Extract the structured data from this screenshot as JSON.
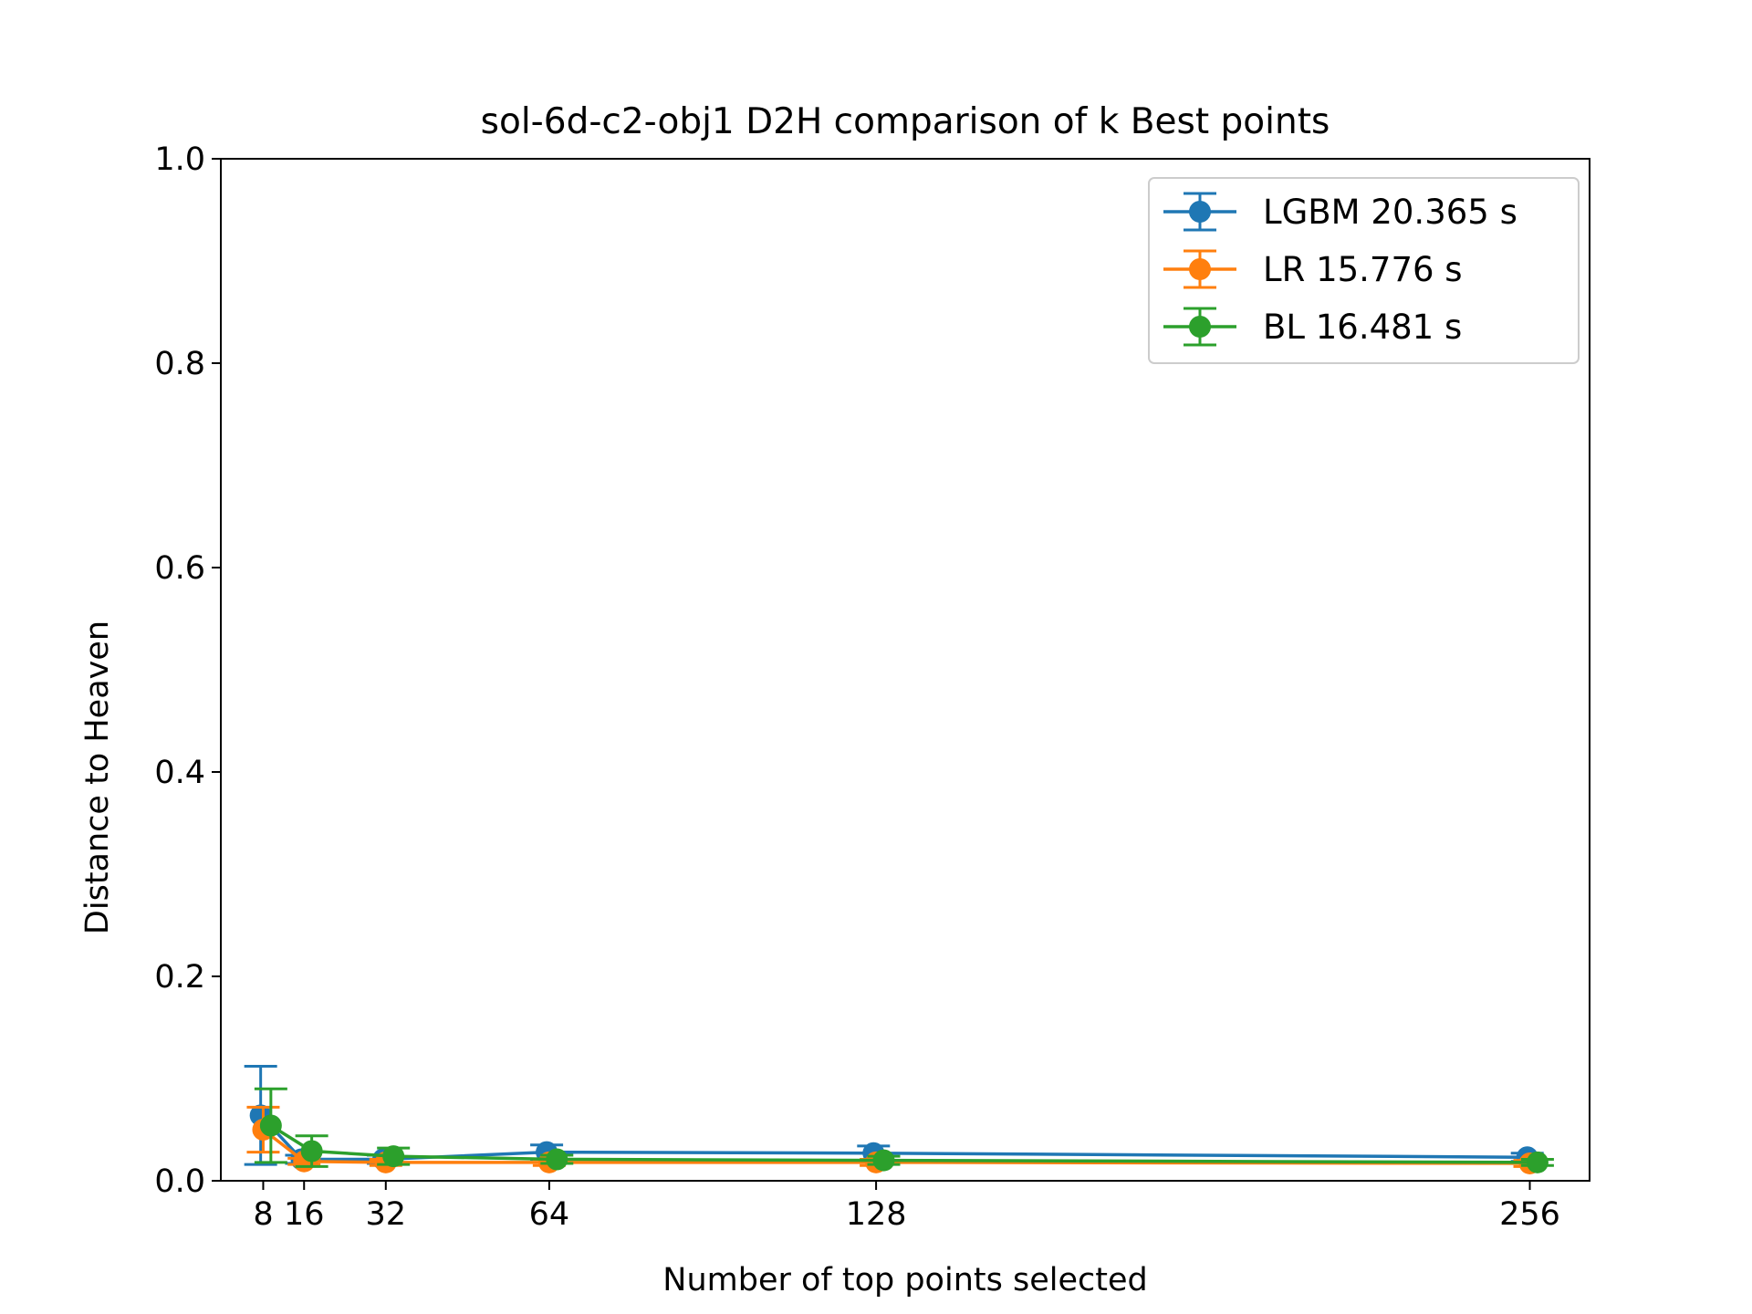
{
  "chart_data": {
    "type": "line",
    "title": "sol-6d-c2-obj1 D2H comparison of k Best points",
    "xlabel": "Number of top points selected",
    "ylabel": "Distance to Heaven",
    "xlim": [
      -0.3,
      267.7
    ],
    "ylim": [
      0.0,
      1.0
    ],
    "x_ticks": [
      8,
      16,
      32,
      64,
      128,
      256
    ],
    "x_tick_labels": [
      "8",
      "16",
      "32",
      "64",
      "128",
      "256"
    ],
    "y_ticks": [
      0.0,
      0.2,
      0.4,
      0.6,
      0.8,
      1.0
    ],
    "y_tick_labels": [
      "0.0",
      "0.2",
      "0.4",
      "0.6",
      "0.8",
      "1.0"
    ],
    "grid": false,
    "legend_position": "top-right",
    "series": [
      {
        "name": "LGBM 20.365 s",
        "color": "#1f77b4",
        "x": [
          7.5,
          15.5,
          31.5,
          63.5,
          127.5,
          255.5
        ],
        "y": [
          0.064,
          0.021,
          0.021,
          0.028,
          0.027,
          0.023
        ],
        "yerr": [
          0.048,
          0.004,
          0.004,
          0.007,
          0.007,
          0.004
        ]
      },
      {
        "name": "LR 15.776 s",
        "color": "#ff7f0e",
        "x": [
          8.0,
          16.0,
          32.0,
          64.0,
          128.0,
          256.0
        ],
        "y": [
          0.05,
          0.019,
          0.018,
          0.018,
          0.018,
          0.017
        ],
        "yerr": [
          0.022,
          0.003,
          0.003,
          0.003,
          0.003,
          0.003
        ]
      },
      {
        "name": "BL 16.481 s",
        "color": "#2ca02c",
        "x": [
          9.5,
          17.5,
          33.5,
          65.5,
          129.5,
          257.5
        ],
        "y": [
          0.054,
          0.029,
          0.024,
          0.021,
          0.02,
          0.018
        ],
        "yerr": [
          0.036,
          0.015,
          0.008,
          0.004,
          0.004,
          0.003
        ]
      }
    ]
  }
}
